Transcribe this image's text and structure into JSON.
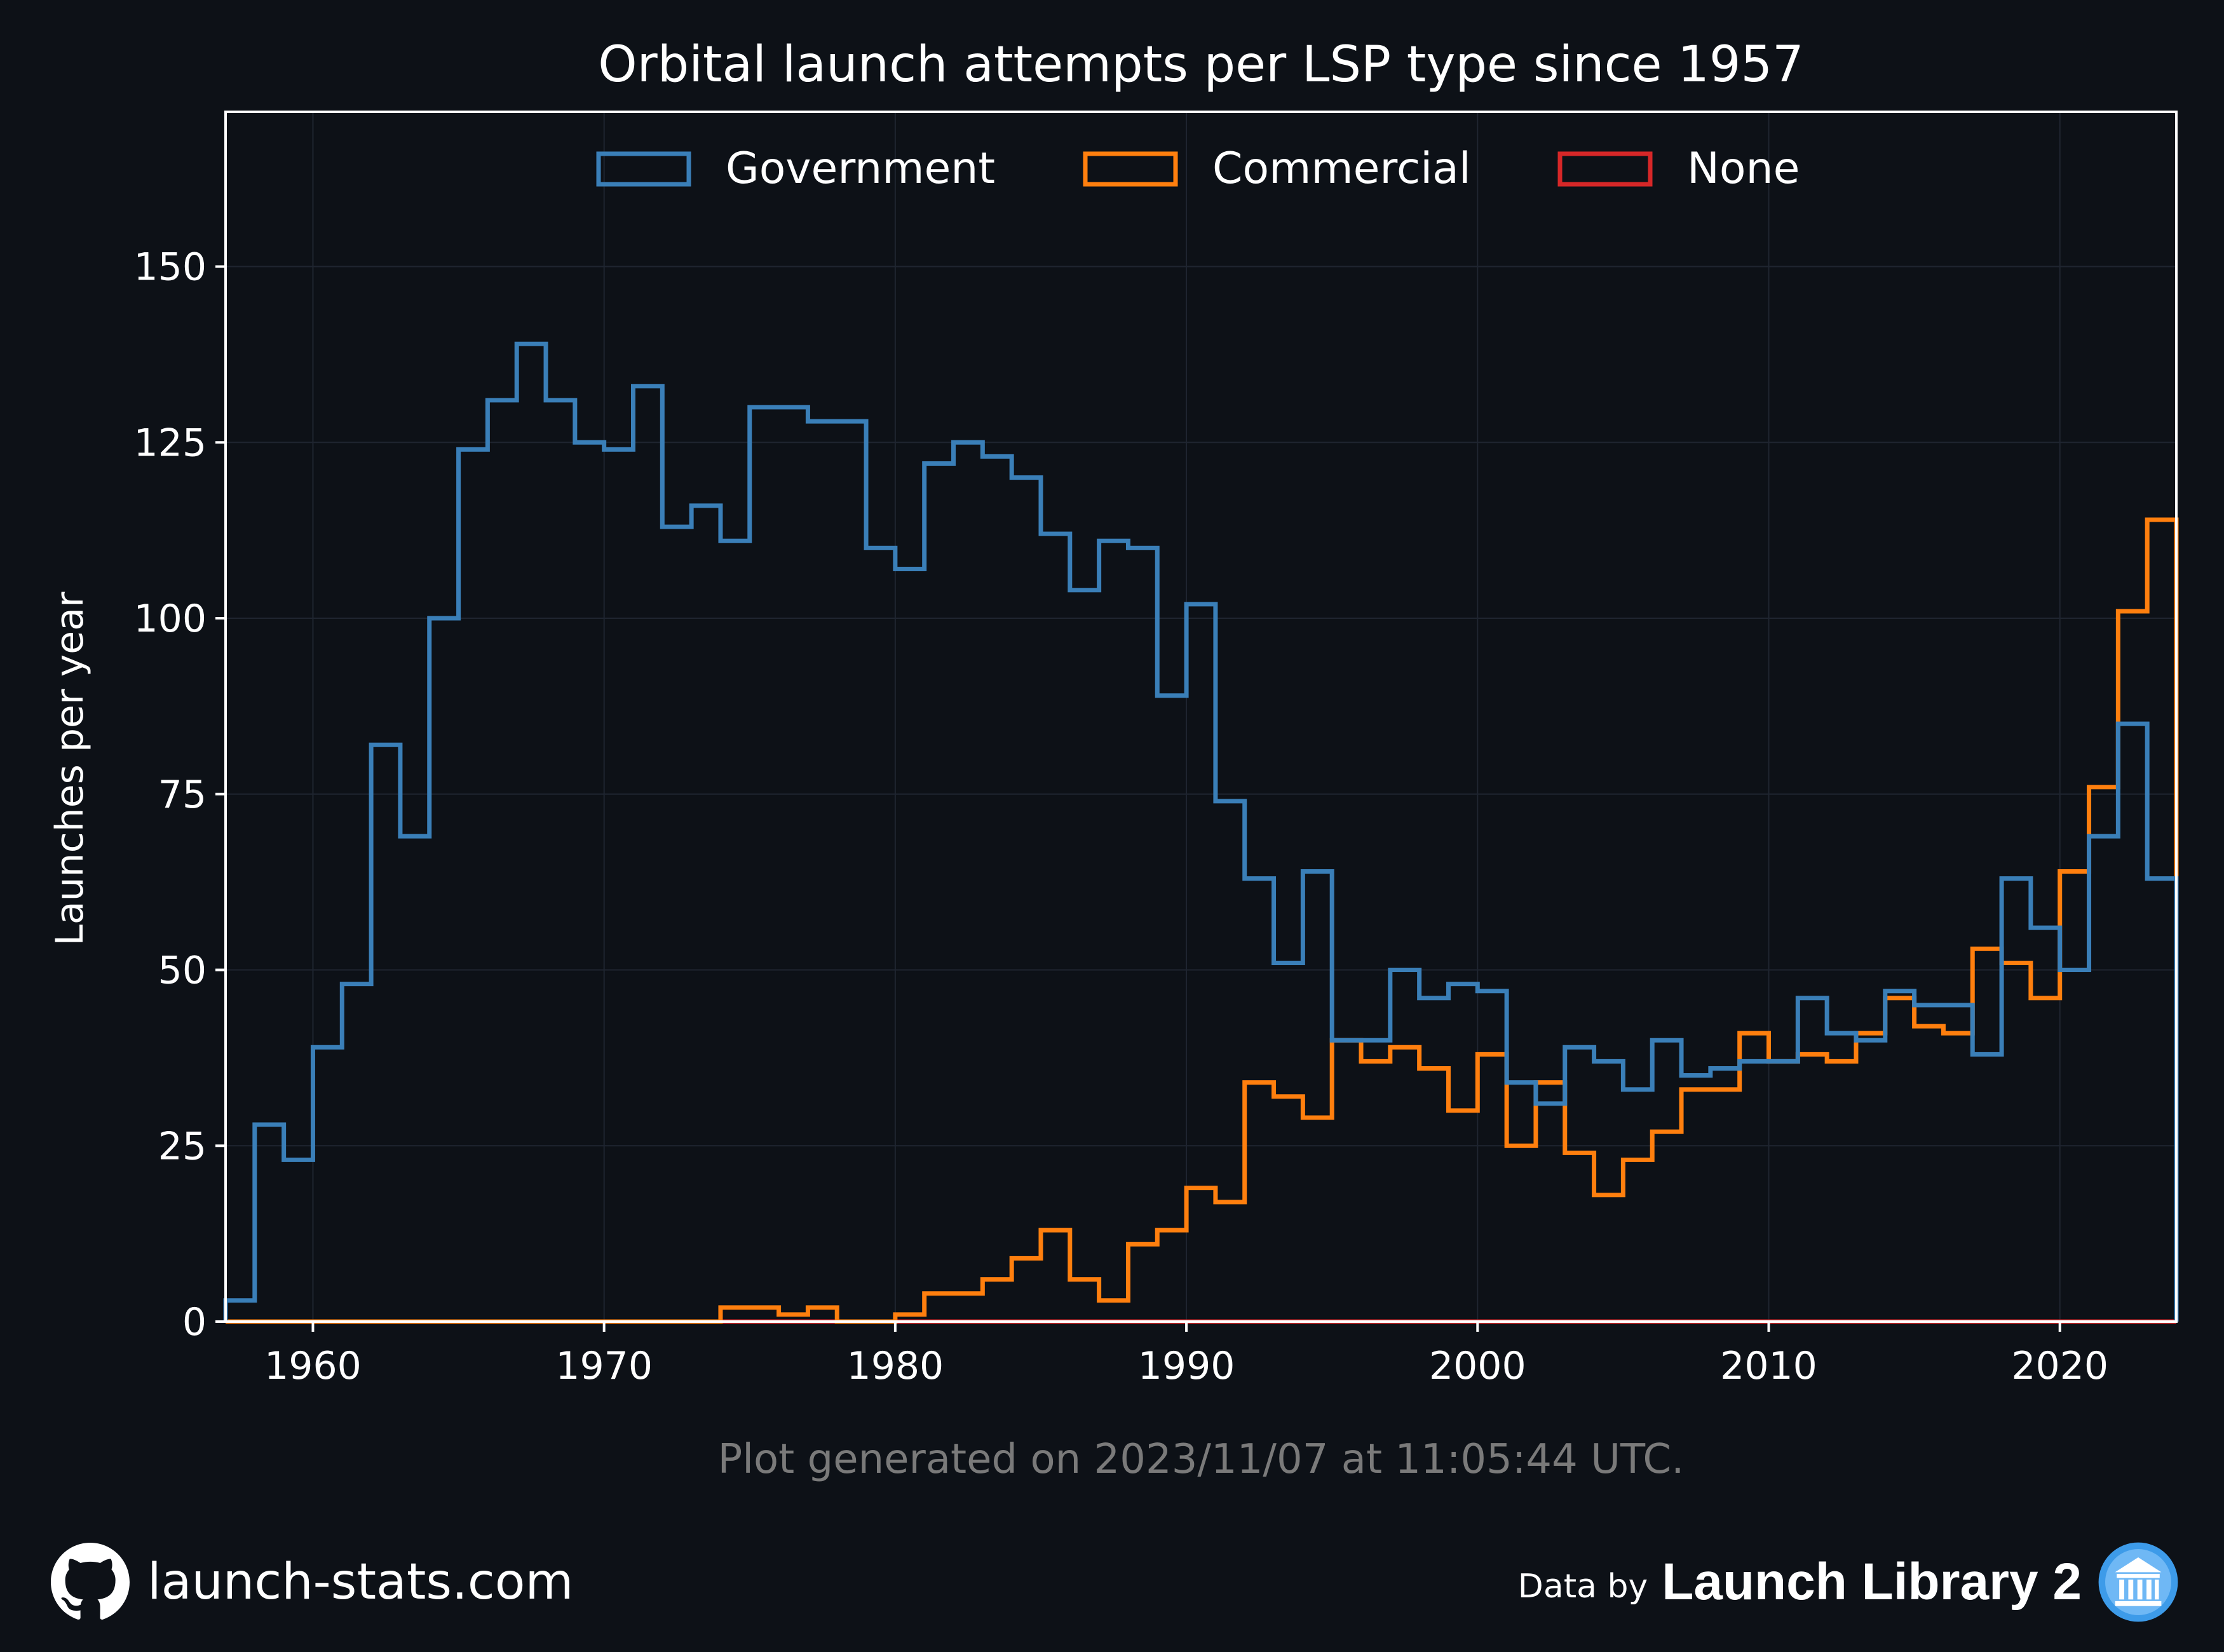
{
  "chart_data": {
    "type": "line",
    "step": "post",
    "title": "Orbital launch attempts per LSP type since 1957",
    "xlabel": "",
    "ylabel": "Launches per year",
    "xlim": [
      1957,
      2024
    ],
    "ylim": [
      0,
      172
    ],
    "xticks": [
      1960,
      1970,
      1980,
      1990,
      2000,
      2010,
      2020
    ],
    "yticks": [
      0,
      25,
      50,
      75,
      100,
      125,
      150
    ],
    "grid": true,
    "legend_position": "top-center",
    "years": [
      1957,
      1958,
      1959,
      1960,
      1961,
      1962,
      1963,
      1964,
      1965,
      1966,
      1967,
      1968,
      1969,
      1970,
      1971,
      1972,
      1973,
      1974,
      1975,
      1976,
      1977,
      1978,
      1979,
      1980,
      1981,
      1982,
      1983,
      1984,
      1985,
      1986,
      1987,
      1988,
      1989,
      1990,
      1991,
      1992,
      1993,
      1994,
      1995,
      1996,
      1997,
      1998,
      1999,
      2000,
      2001,
      2002,
      2003,
      2004,
      2005,
      2006,
      2007,
      2008,
      2009,
      2010,
      2011,
      2012,
      2013,
      2014,
      2015,
      2016,
      2017,
      2018,
      2019,
      2020,
      2021,
      2022,
      2023
    ],
    "series": [
      {
        "name": "Government",
        "color": "#3a7fb8",
        "values": [
          3,
          28,
          23,
          39,
          48,
          82,
          69,
          100,
          124,
          131,
          139,
          131,
          125,
          124,
          133,
          113,
          116,
          111,
          130,
          130,
          128,
          128,
          110,
          107,
          122,
          125,
          123,
          120,
          112,
          104,
          111,
          110,
          89,
          102,
          74,
          63,
          51,
          64,
          40,
          40,
          50,
          46,
          48,
          47,
          34,
          31,
          39,
          37,
          33,
          40,
          35,
          36,
          37,
          37,
          46,
          41,
          40,
          47,
          45,
          45,
          38,
          63,
          56,
          50,
          69,
          85,
          63
        ]
      },
      {
        "name": "Commercial",
        "color": "#ff7f0e",
        "values": [
          0,
          0,
          0,
          0,
          0,
          0,
          0,
          0,
          0,
          0,
          0,
          0,
          0,
          0,
          0,
          0,
          0,
          2,
          2,
          1,
          2,
          0,
          0,
          1,
          4,
          4,
          6,
          9,
          13,
          6,
          3,
          11,
          13,
          19,
          17,
          34,
          32,
          29,
          40,
          37,
          39,
          36,
          30,
          38,
          25,
          34,
          24,
          18,
          23,
          27,
          33,
          33,
          41,
          37,
          38,
          37,
          41,
          46,
          42,
          41,
          53,
          51,
          46,
          64,
          76,
          101,
          114
        ]
      },
      {
        "name": "None",
        "color": "#d62728",
        "values": [
          0,
          0,
          0,
          0,
          0,
          0,
          0,
          0,
          0,
          0,
          0,
          0,
          0,
          0,
          0,
          0,
          0,
          0,
          0,
          0,
          0,
          0,
          0,
          0,
          0,
          0,
          0,
          0,
          0,
          0,
          0,
          0,
          0,
          0,
          0,
          0,
          0,
          0,
          0,
          0,
          0,
          0,
          0,
          0,
          0,
          0,
          0,
          0,
          0,
          0,
          0,
          0,
          0,
          0,
          0,
          0,
          0,
          0,
          0,
          0,
          0,
          0,
          0,
          0,
          0,
          0,
          0
        ]
      }
    ]
  },
  "caption": "Plot generated on 2023/11/07 at 11:05:44 UTC.",
  "footer": {
    "site": "launch-stats.com",
    "site_icon": "github-icon",
    "data_by": "Data by",
    "library": "Launch Library 2",
    "library_icon": "institution-icon"
  },
  "colors": {
    "background": "#0d1117",
    "text": "#ffffff",
    "caption": "#7a7a7a",
    "grid": "#1f2530"
  }
}
